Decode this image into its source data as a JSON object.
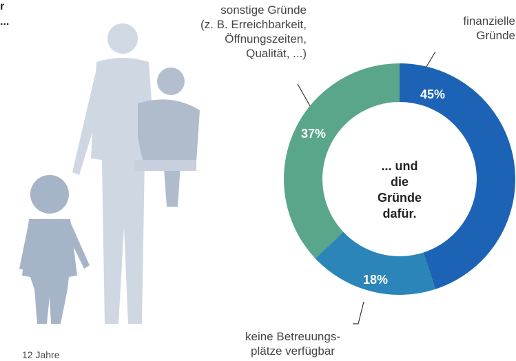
{
  "chart_data": {
    "type": "donut",
    "title": "... und\ndie Gründe\ndafür.",
    "categories": [
      "finanzielle\nGründe",
      "keine Betreuungs-\nplätze verfügbar",
      "sonstige Gründe\n(z. B. Erreichbarkeit,\nÖffnungszeiten,\nQualität, ...)"
    ],
    "values": [
      45,
      18,
      37
    ],
    "value_labels": [
      "45%",
      "18%",
      "37%"
    ],
    "colors": [
      "#1d63b5",
      "#2b85b8",
      "#5aa68a"
    ],
    "annotations": [
      "r",
      "...",
      "12 Jahre"
    ]
  }
}
